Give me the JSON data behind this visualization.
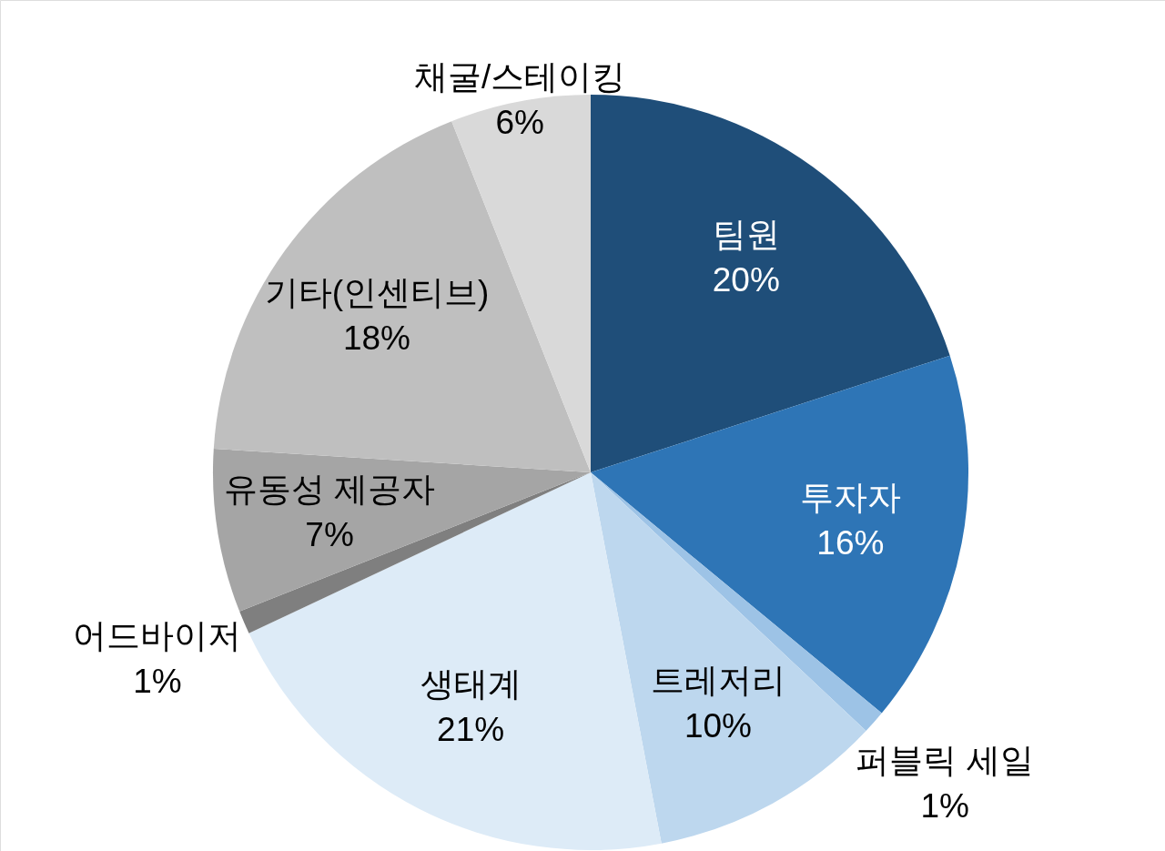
{
  "chart_data": {
    "type": "pie",
    "categories": [
      "팀원",
      "투자자",
      "퍼블릭 세일",
      "트레저리",
      "생태계",
      "어드바이저",
      "유동성 제공자",
      "기타(인센티브)",
      "채굴/스테이킹"
    ],
    "values": [
      20,
      16,
      1,
      10,
      21,
      1,
      7,
      18,
      6
    ],
    "colors": [
      "#1f4e79",
      "#2e75b6",
      "#9dc3e6",
      "#bdd7ee",
      "#ddebf7",
      "#7f7f7f",
      "#a5a5a5",
      "#bfbfbf",
      "#d9d9d9"
    ],
    "value_labels": [
      "20%",
      "16%",
      "1%",
      "10%",
      "21%",
      "1%",
      "7%",
      "18%",
      "6%"
    ]
  }
}
